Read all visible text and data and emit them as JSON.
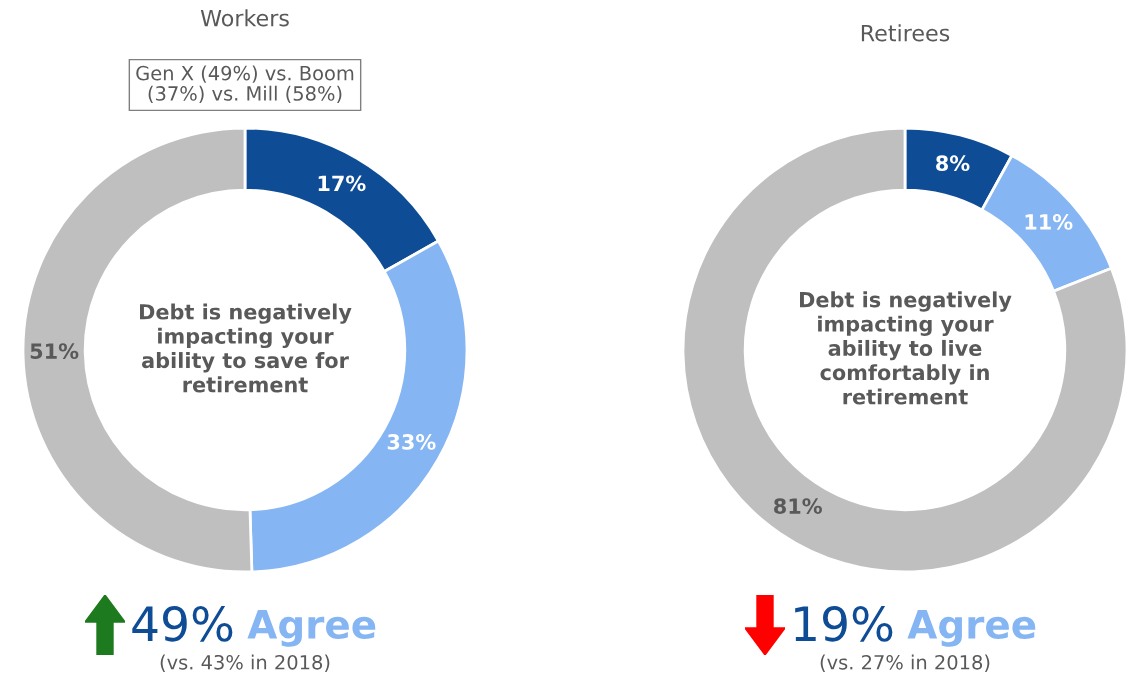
{
  "chart_data": [
    {
      "type": "donut",
      "title": "Workers",
      "subtitle": "Gen X (49%) vs. Boom\n(37%) vs. Mill (58%)",
      "categories": [
        null,
        null,
        null
      ],
      "values": [
        17,
        33,
        51
      ],
      "colors": [
        "#0f4c96",
        "#85b5f2",
        "#bfbfbf"
      ],
      "value_labels": [
        "17%",
        "33%",
        "51%"
      ],
      "annotations": [
        "Debt is negatively\nimpacting your\nability to save for\nretirement",
        "49%",
        "Agree",
        "(vs. 43% in 2018)"
      ]
    },
    {
      "type": "donut",
      "title": "Retirees",
      "categories": [
        null,
        null,
        null
      ],
      "values": [
        8,
        11,
        81
      ],
      "colors": [
        "#0f4c96",
        "#85b5f2",
        "#bfbfbf"
      ],
      "value_labels": [
        "8%",
        "11%",
        "81%"
      ],
      "annotations": [
        "Debt is negatively\nimpacting your\nability to live\ncomfortably in\nretirement",
        "19%",
        "Agree",
        "(vs. 27% in 2018)"
      ]
    }
  ]
}
